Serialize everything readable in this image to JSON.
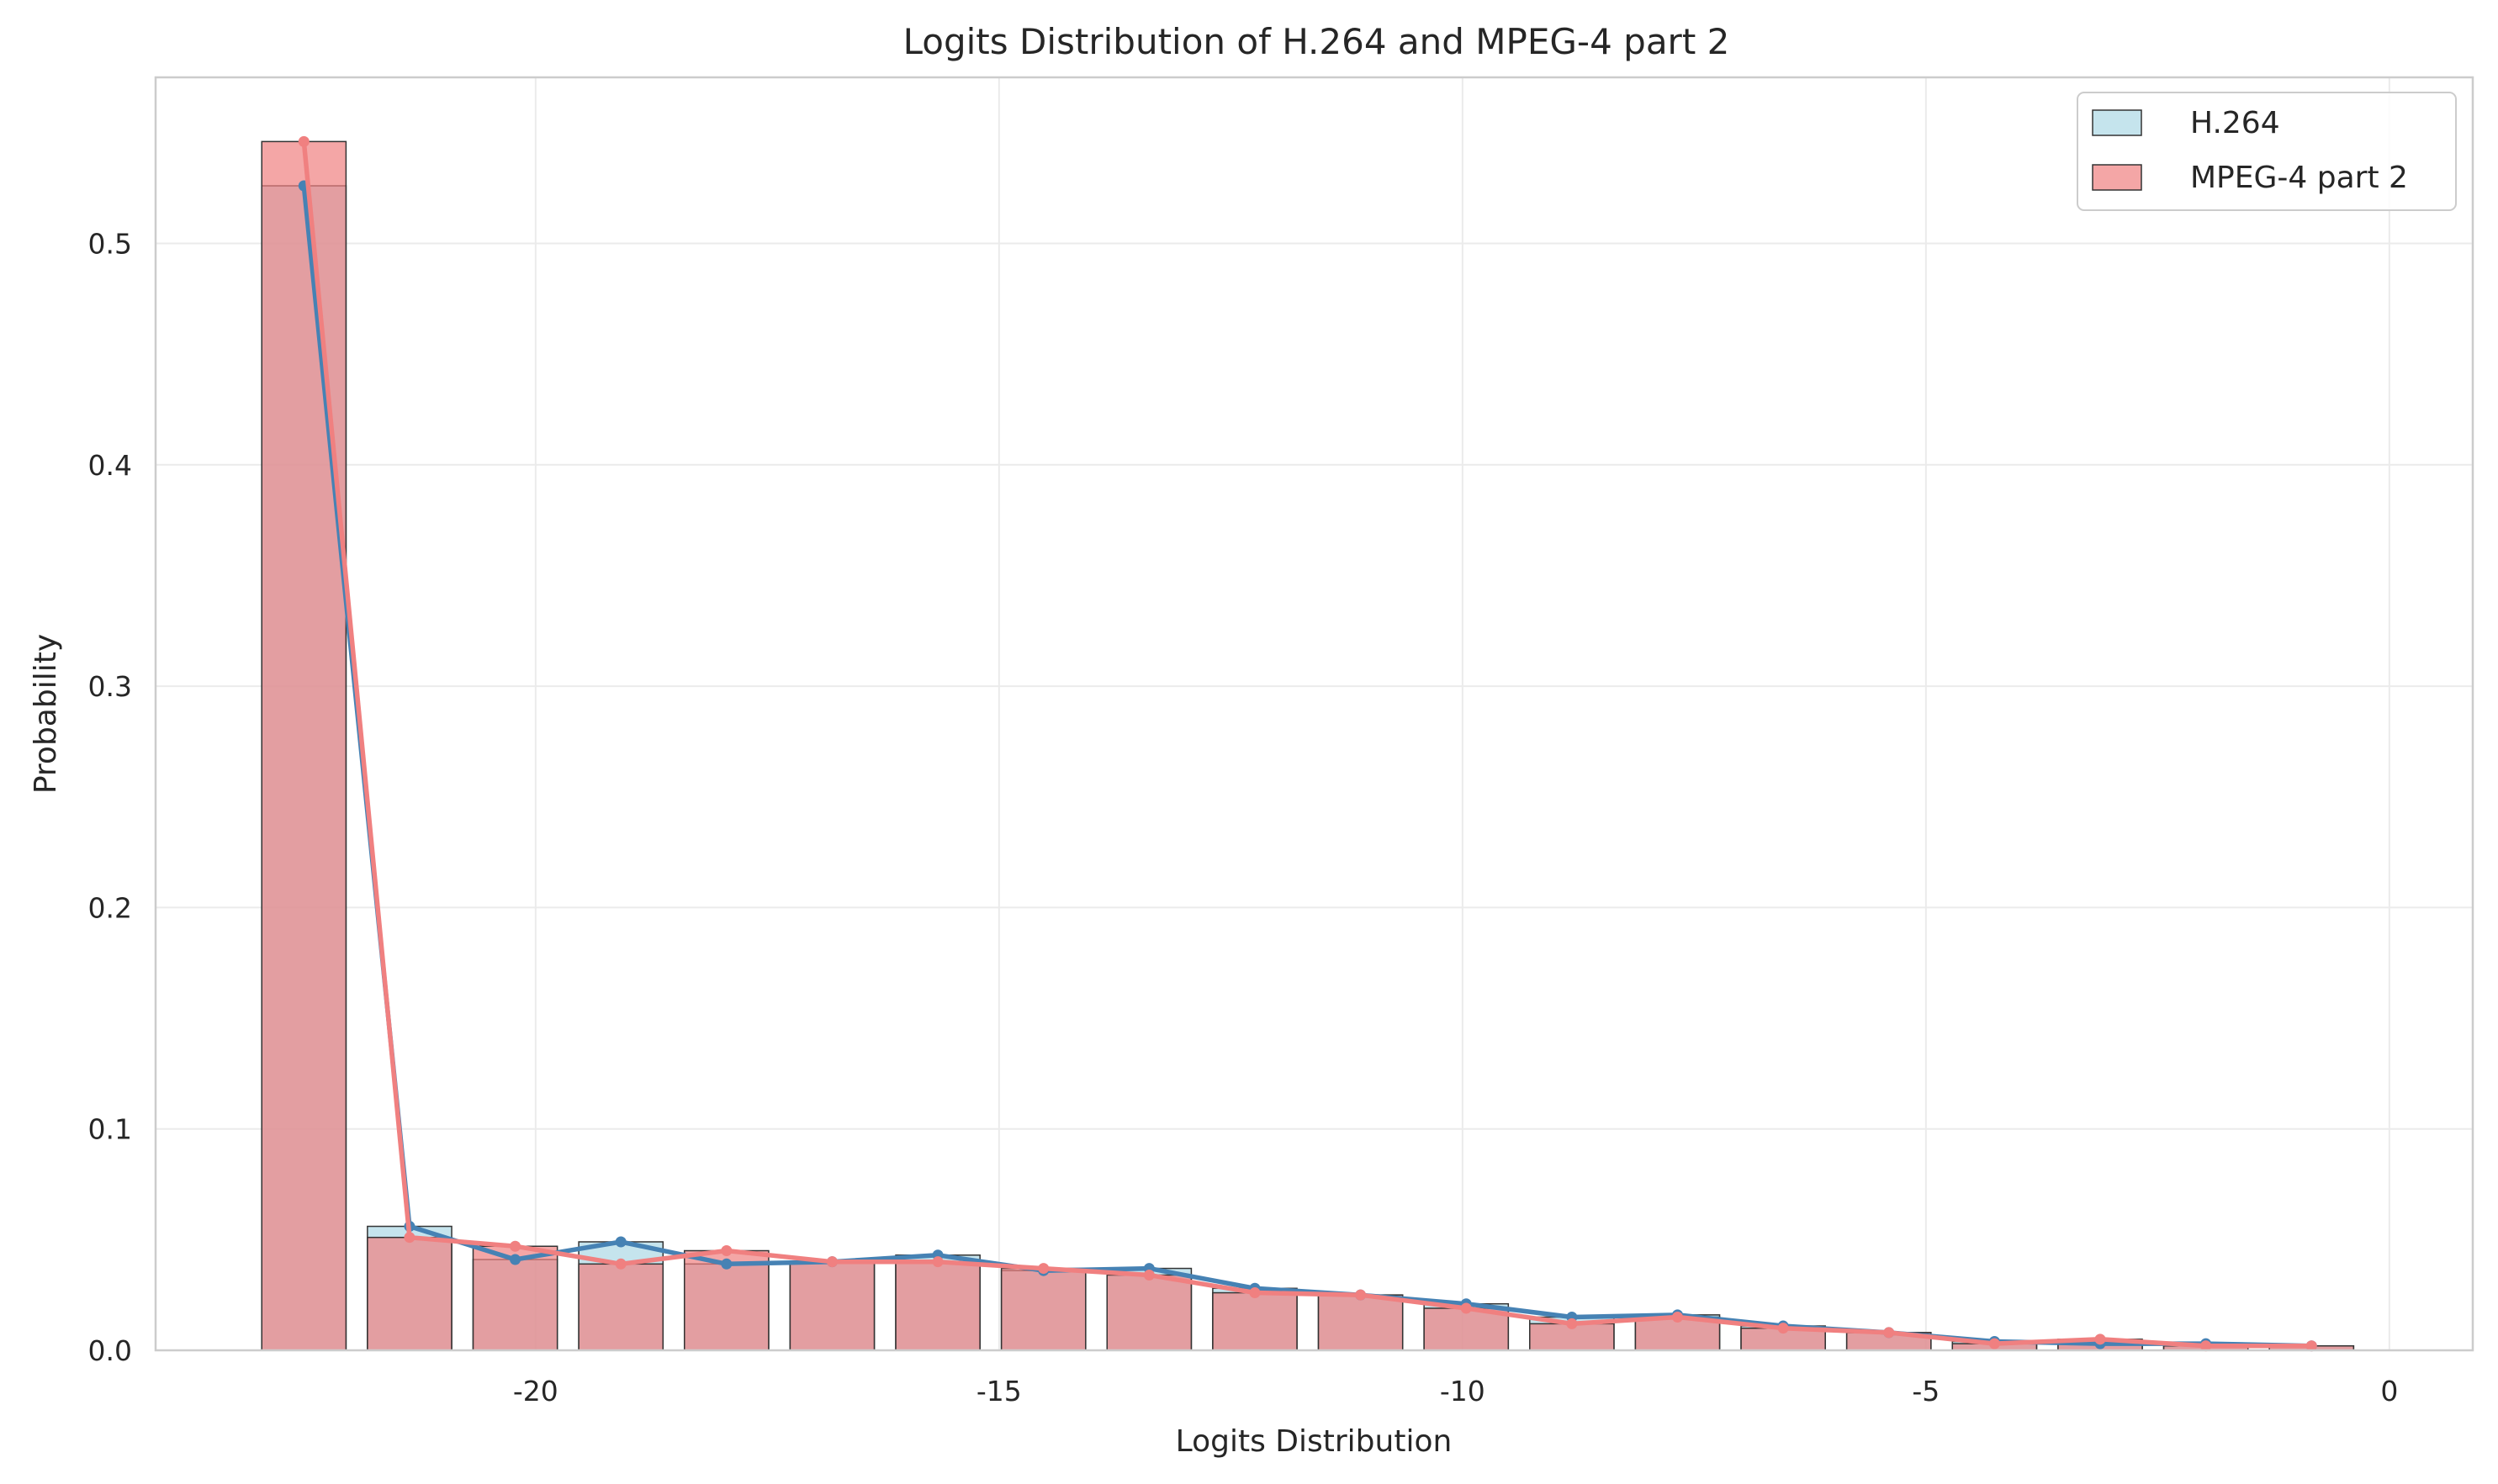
{
  "chart_data": {
    "type": "bar",
    "title": "Logits Distribution of H.264 and MPEG-4 part 2",
    "xlabel": "Logits Distribution",
    "ylabel": "Probability",
    "xlim": [
      -24.1,
      0.9
    ],
    "ylim": [
      0,
      0.575
    ],
    "xticks": [
      -20,
      -15,
      -10,
      -5,
      0
    ],
    "xtick_labels": [
      "-20",
      "-15",
      "-10",
      "-5",
      "0"
    ],
    "yticks": [
      0.0,
      0.1,
      0.2,
      0.3,
      0.4,
      0.5
    ],
    "ytick_labels": [
      "0.0",
      "0.1",
      "0.2",
      "0.3",
      "0.4",
      "0.5"
    ],
    "grid": true,
    "legend_position": "top-right",
    "bin_width": 0.909,
    "bar_width": 0.909,
    "x": [
      -22.5,
      -21.36,
      -20.22,
      -19.08,
      -17.94,
      -16.8,
      -15.66,
      -14.52,
      -13.38,
      -12.24,
      -11.1,
      -9.96,
      -8.82,
      -7.68,
      -6.54,
      -5.4,
      -4.26,
      -3.12,
      -1.98,
      -0.84
    ],
    "series": [
      {
        "name": "H.264",
        "bar_color": "#add8e6",
        "line_color": "#4682b4",
        "values": [
          0.526,
          0.056,
          0.041,
          0.049,
          0.039,
          0.04,
          0.043,
          0.036,
          0.037,
          0.028,
          0.025,
          0.021,
          0.015,
          0.016,
          0.011,
          0.008,
          0.004,
          0.003,
          0.003,
          0.002
        ]
      },
      {
        "name": "MPEG-4 part 2",
        "bar_color": "#f08080",
        "line_color": "#f08080",
        "values": [
          0.546,
          0.051,
          0.047,
          0.039,
          0.045,
          0.04,
          0.04,
          0.037,
          0.034,
          0.026,
          0.025,
          0.019,
          0.012,
          0.015,
          0.01,
          0.008,
          0.003,
          0.005,
          0.002,
          0.002
        ]
      }
    ]
  }
}
